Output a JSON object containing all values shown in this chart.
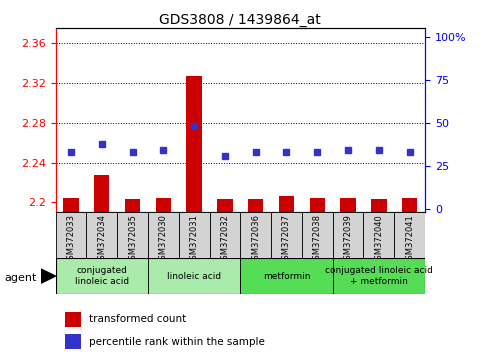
{
  "title": "GDS3808 / 1439864_at",
  "samples": [
    "GSM372033",
    "GSM372034",
    "GSM372035",
    "GSM372030",
    "GSM372031",
    "GSM372032",
    "GSM372036",
    "GSM372037",
    "GSM372038",
    "GSM372039",
    "GSM372040",
    "GSM372041"
  ],
  "bar_values": [
    2.204,
    2.228,
    2.203,
    2.204,
    2.327,
    2.203,
    2.203,
    2.206,
    2.204,
    2.204,
    2.203,
    2.204
  ],
  "blue_values_pct": [
    33,
    38,
    33,
    34,
    48,
    31,
    33,
    33,
    33,
    34,
    34,
    33
  ],
  "ylim_left": [
    2.19,
    2.375
  ],
  "ylim_right": [
    -2,
    105
  ],
  "yticks_left": [
    2.2,
    2.24,
    2.28,
    2.32,
    2.36
  ],
  "yticks_right": [
    0,
    25,
    50,
    75,
    100
  ],
  "bar_color": "#cc0000",
  "blue_color": "#3333cc",
  "bar_bottom": 2.19,
  "bar_width": 0.5,
  "agent_groups": [
    {
      "label": "conjugated\nlinoleic acid",
      "span": [
        0,
        2
      ],
      "color": "#aaeaaa"
    },
    {
      "label": "linoleic acid",
      "span": [
        3,
        5
      ],
      "color": "#aaeaaa"
    },
    {
      "label": "metformin",
      "span": [
        6,
        8
      ],
      "color": "#55dd55"
    },
    {
      "label": "conjugated linoleic acid\n+ metformin",
      "span": [
        9,
        11
      ],
      "color": "#55dd55"
    }
  ],
  "legend_items": [
    {
      "label": "transformed count",
      "color": "#cc0000"
    },
    {
      "label": "percentile rank within the sample",
      "color": "#3333cc"
    }
  ]
}
